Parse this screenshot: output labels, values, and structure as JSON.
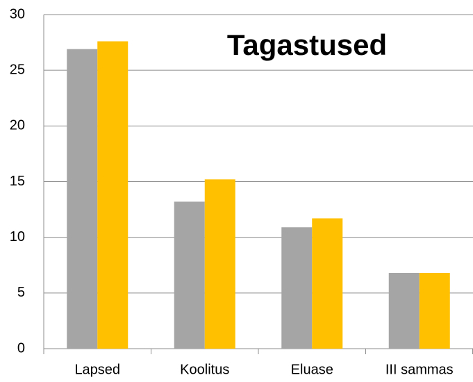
{
  "chart_data": {
    "type": "bar",
    "title": "Tagastused",
    "categories": [
      "Lapsed",
      "Koolitus",
      "Eluase",
      "III sammas"
    ],
    "series": [
      {
        "color": "#a5a5a5",
        "values": [
          26.9,
          13.2,
          10.9,
          6.8
        ]
      },
      {
        "color": "#ffc000",
        "values": [
          27.6,
          15.2,
          11.7,
          6.8
        ]
      }
    ],
    "ylim": [
      0,
      30
    ],
    "yticks": [
      0,
      5,
      10,
      15,
      20,
      25,
      30
    ],
    "grid": true
  }
}
